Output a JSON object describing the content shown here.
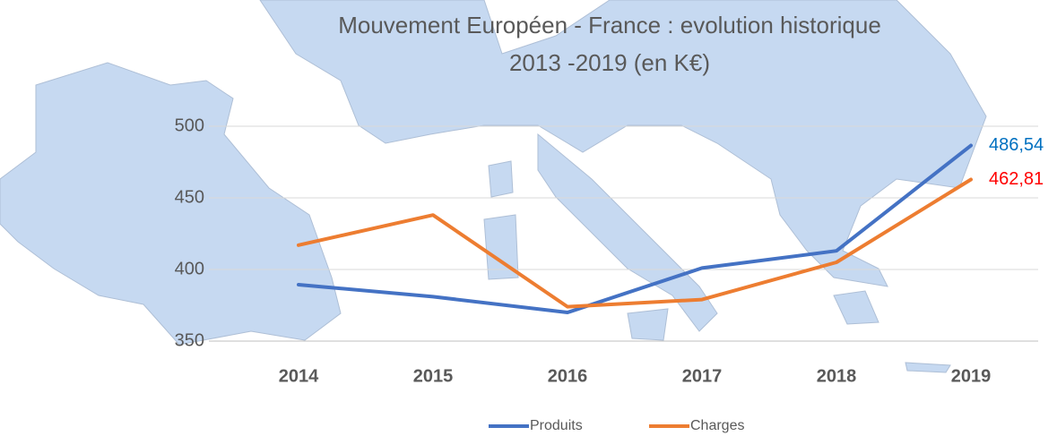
{
  "chart_data": {
    "type": "line",
    "title": [
      "Mouvement Européen - France : evolution  historique",
      "2013 -2019 (en K€)"
    ],
    "categories": [
      "2014",
      "2015",
      "2016",
      "2017",
      "2018",
      "2019"
    ],
    "series": [
      {
        "name": "Produits",
        "color": "#4472c4",
        "label_color": "#0070c0",
        "values": [
          389.4,
          381,
          370,
          401,
          413,
          486.54
        ],
        "value_labels": [
          null,
          null,
          null,
          null,
          null,
          "486,54"
        ]
      },
      {
        "name": "Charges",
        "color": "#ed7d31",
        "label_color": "#ff0000",
        "values": [
          417,
          438,
          374,
          379,
          405,
          462.81
        ],
        "value_labels": [
          null,
          null,
          null,
          null,
          null,
          "462,81"
        ]
      }
    ],
    "ylim": [
      350,
      500
    ],
    "yticks": [
      350,
      400,
      450,
      500
    ],
    "grid": true,
    "legend": "bottom"
  }
}
